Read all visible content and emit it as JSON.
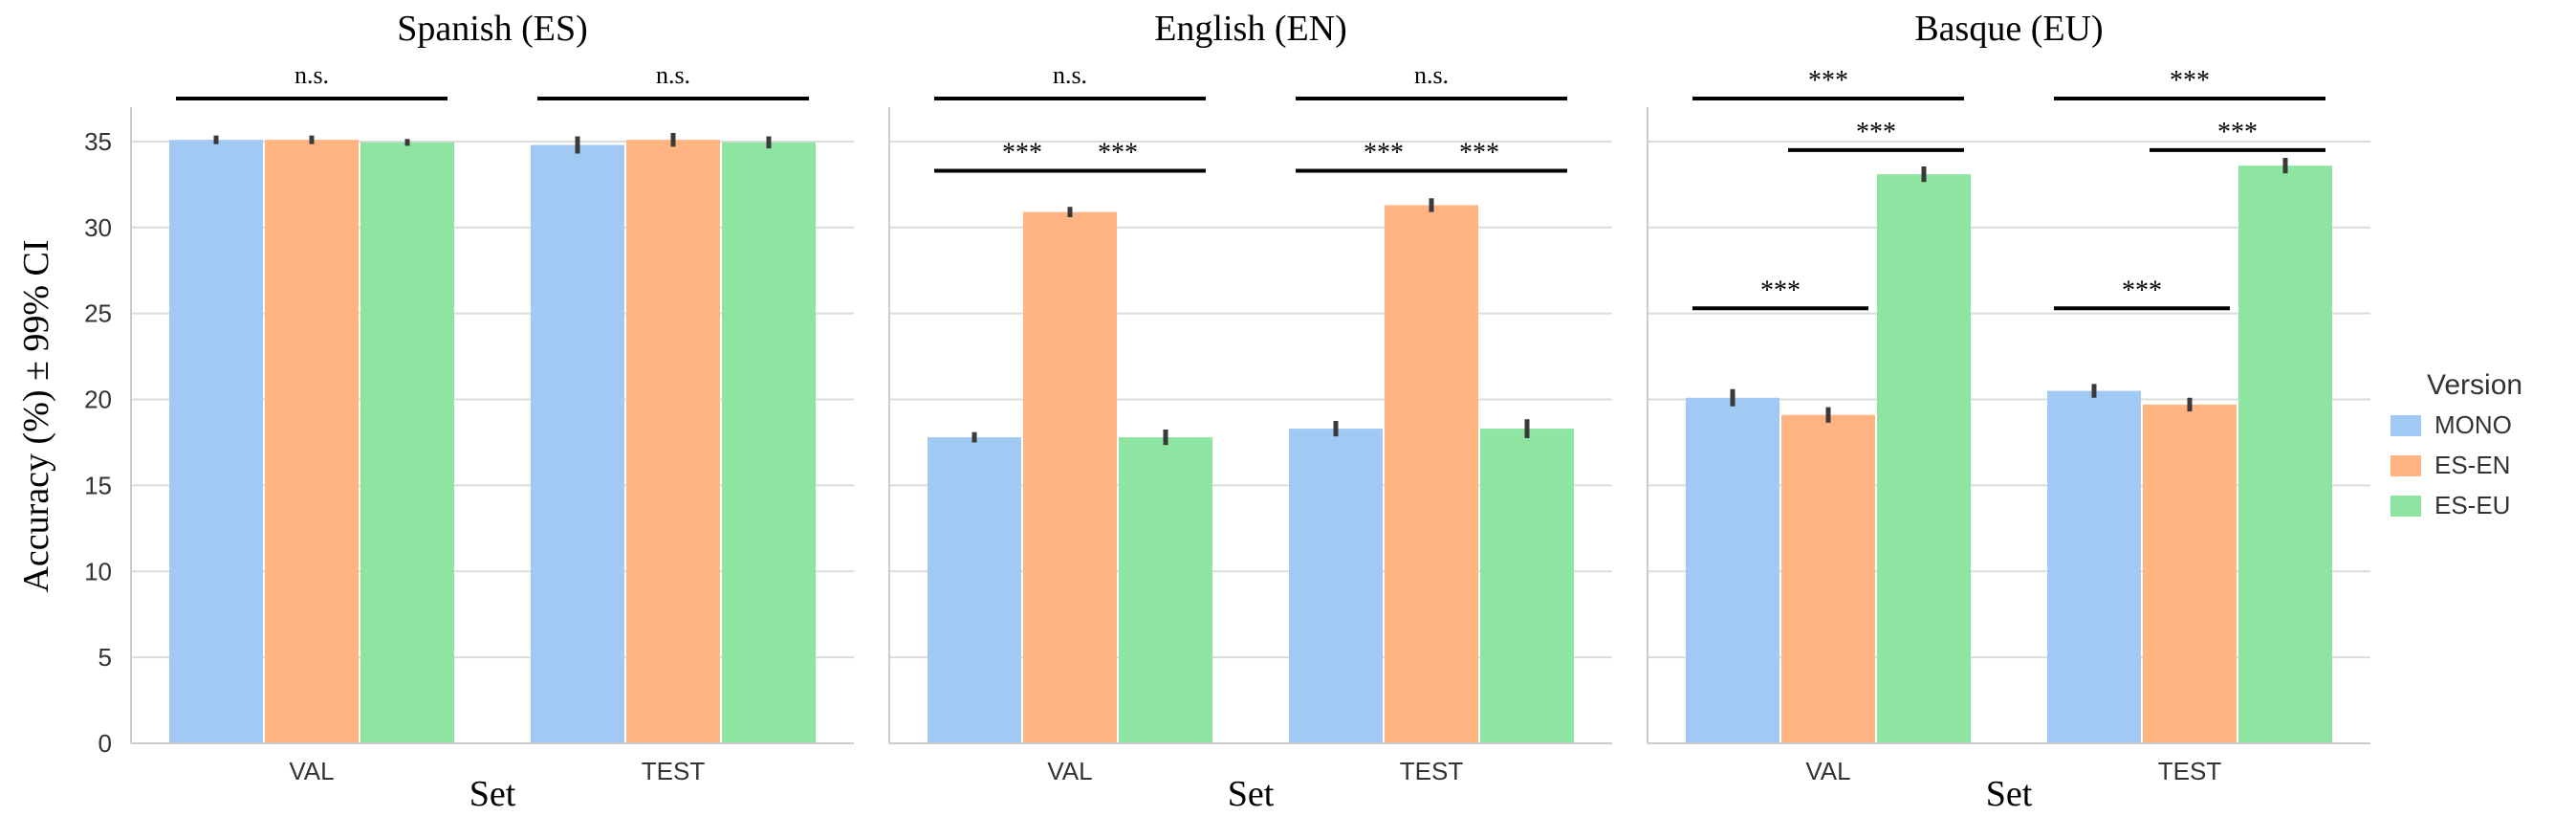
{
  "chart_data": [
    {
      "type": "bar",
      "title": "Spanish (ES)",
      "xlabel": "Set",
      "ylabel": "Accuracy (%) ± 99% CI",
      "categories": [
        "VAL",
        "TEST"
      ],
      "ylim": [
        0,
        37
      ],
      "yticks": [
        0,
        5,
        10,
        15,
        20,
        25,
        30,
        35
      ],
      "grid": true,
      "series": [
        {
          "name": "MONO",
          "values": [
            35.1,
            34.8
          ],
          "ci": [
            0.25,
            0.5
          ]
        },
        {
          "name": "ES-EN",
          "values": [
            35.1,
            35.1
          ],
          "ci": [
            0.25,
            0.4
          ]
        },
        {
          "name": "ES-EU",
          "values": [
            34.95,
            34.95
          ],
          "ci": [
            0.2,
            0.35
          ]
        }
      ],
      "annotations": [
        {
          "label": "n.s.",
          "category": 0,
          "from": 0,
          "to": 2,
          "y": 37.5
        },
        {
          "label": "n.s.",
          "category": 1,
          "from": 0,
          "to": 2,
          "y": 37.5
        }
      ]
    },
    {
      "type": "bar",
      "title": "English (EN)",
      "xlabel": "Set",
      "categories": [
        "VAL",
        "TEST"
      ],
      "ylim": [
        0,
        37
      ],
      "yticks": [
        0,
        5,
        10,
        15,
        20,
        25,
        30,
        35
      ],
      "grid": true,
      "series": [
        {
          "name": "MONO",
          "values": [
            17.8,
            18.3
          ],
          "ci": [
            0.3,
            0.45
          ]
        },
        {
          "name": "ES-EN",
          "values": [
            30.9,
            31.3
          ],
          "ci": [
            0.3,
            0.4
          ]
        },
        {
          "name": "ES-EU",
          "values": [
            17.8,
            18.3
          ],
          "ci": [
            0.45,
            0.55
          ]
        }
      ],
      "annotations": [
        {
          "label": "n.s.",
          "category": 0,
          "from": 0,
          "to": 2,
          "y": 37.5
        },
        {
          "label": "***",
          "category": 0,
          "from": 0,
          "to": 1,
          "y": 33.3
        },
        {
          "label": "***",
          "category": 0,
          "from": 1,
          "to": 2,
          "y": 33.3
        },
        {
          "label": "n.s.",
          "category": 1,
          "from": 0,
          "to": 2,
          "y": 37.5
        },
        {
          "label": "***",
          "category": 1,
          "from": 0,
          "to": 1,
          "y": 33.3
        },
        {
          "label": "***",
          "category": 1,
          "from": 1,
          "to": 2,
          "y": 33.3
        }
      ]
    },
    {
      "type": "bar",
      "title": "Basque (EU)",
      "xlabel": "Set",
      "categories": [
        "VAL",
        "TEST"
      ],
      "ylim": [
        0,
        37
      ],
      "yticks": [
        0,
        5,
        10,
        15,
        20,
        25,
        30,
        35
      ],
      "grid": true,
      "series": [
        {
          "name": "MONO",
          "values": [
            20.1,
            20.5
          ],
          "ci": [
            0.5,
            0.4
          ]
        },
        {
          "name": "ES-EN",
          "values": [
            19.1,
            19.7
          ],
          "ci": [
            0.45,
            0.4
          ]
        },
        {
          "name": "ES-EU",
          "values": [
            33.1,
            33.6
          ],
          "ci": [
            0.45,
            0.45
          ]
        }
      ],
      "annotations": [
        {
          "label": "***",
          "category": 0,
          "from": 0,
          "to": 2,
          "y": 37.5
        },
        {
          "label": "***",
          "category": 0,
          "from": 1,
          "to": 2,
          "y": 34.5
        },
        {
          "label": "***",
          "category": 0,
          "from": 0,
          "to": 1,
          "y": 25.3
        },
        {
          "label": "***",
          "category": 1,
          "from": 0,
          "to": 2,
          "y": 37.5
        },
        {
          "label": "***",
          "category": 1,
          "from": 1,
          "to": 2,
          "y": 34.5
        },
        {
          "label": "***",
          "category": 1,
          "from": 0,
          "to": 1,
          "y": 25.3
        }
      ]
    }
  ],
  "legend": {
    "title": "Version",
    "placement": "right",
    "items": [
      {
        "name": "MONO",
        "color": "#a1c9f4"
      },
      {
        "name": "ES-EN",
        "color": "#ffb482"
      },
      {
        "name": "ES-EU",
        "color": "#8de5a1"
      }
    ]
  }
}
